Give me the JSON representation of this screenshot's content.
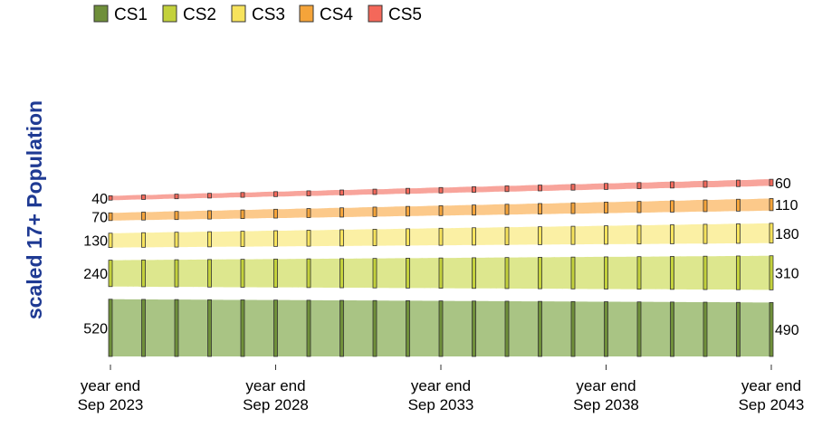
{
  "chart_data": {
    "type": "alluvial",
    "ylabel": "scaled 17+ Population",
    "xlabel": "",
    "x_tick_labels": [
      [
        "year end",
        "Sep 2023"
      ],
      [
        "year end",
        "Sep 2028"
      ],
      [
        "year end",
        "Sep 2033"
      ],
      [
        "year end",
        "Sep 2038"
      ],
      [
        "year end",
        "Sep 2043"
      ]
    ],
    "years": [
      2023,
      2024,
      2025,
      2026,
      2027,
      2028,
      2029,
      2030,
      2031,
      2032,
      2033,
      2034,
      2035,
      2036,
      2037,
      2038,
      2039,
      2040,
      2041,
      2042,
      2043
    ],
    "legend_position": "top-left",
    "series": [
      {
        "name": "CS1",
        "start": 520,
        "end": 490
      },
      {
        "name": "CS2",
        "start": 240,
        "end": 310
      },
      {
        "name": "CS3",
        "start": 130,
        "end": 180
      },
      {
        "name": "CS4",
        "start": 70,
        "end": 110
      },
      {
        "name": "CS5",
        "start": 40,
        "end": 60
      }
    ],
    "start_labels": [
      "520",
      "240",
      "130",
      "70",
      "40"
    ],
    "end_labels": [
      "490",
      "310",
      "180",
      "110",
      "60"
    ],
    "colors": {
      "CS1": {
        "node": "#6f8f3a",
        "flow": "#a9c484"
      },
      "CS2": {
        "node": "#c3d13c",
        "flow": "#dde78e"
      },
      "CS3": {
        "node": "#f7e35c",
        "flow": "#fbf0a4"
      },
      "CS4": {
        "node": "#f5a43a",
        "flow": "#fcc98a"
      },
      "CS5": {
        "node": "#f4685a",
        "flow": "#f8a49b"
      }
    }
  }
}
